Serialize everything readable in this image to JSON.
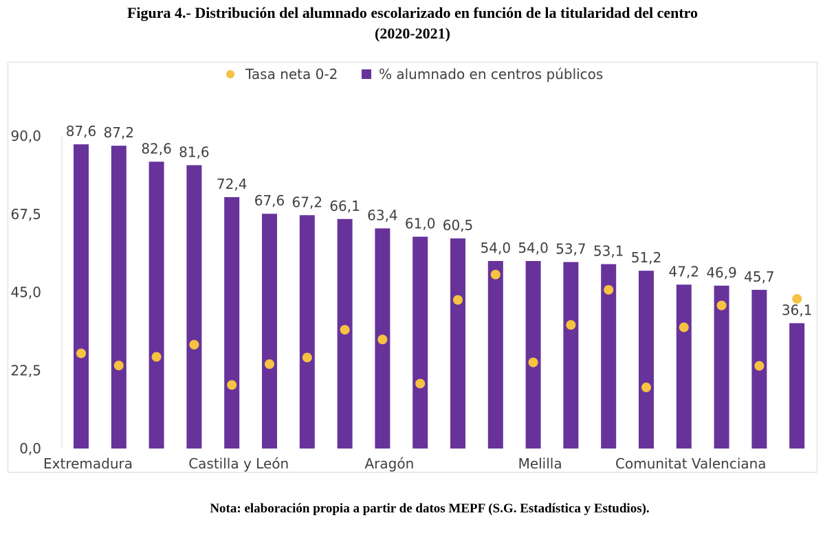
{
  "title": {
    "line1": "Figura 4.- Distribución del alumnado escolarizado en función de la titularidad del centro",
    "line2": "(2020-2021)"
  },
  "note": "Nota: elaboración propia a partir de datos MEPF (S.G. Estadística y Estudios).",
  "colors": {
    "bar": "#67339b",
    "dot": "#f5c242"
  },
  "chart_data": {
    "type": "bar",
    "ylim": [
      0,
      90
    ],
    "yticks": [
      "0,0",
      "22,5",
      "45,0",
      "67,5",
      "90,0"
    ],
    "ytick_values": [
      0,
      22.5,
      45,
      67.5,
      90
    ],
    "grid": false,
    "legend_position": "top",
    "categories": [
      "Extremadura",
      "",
      "",
      "",
      "Castilla y León",
      "",
      "",
      "",
      "Aragón",
      "",
      "",
      "",
      "Melilla",
      "",
      "",
      "",
      "Comunitat Valenciana",
      "",
      "",
      ""
    ],
    "xtick_labels": [
      {
        "index": 0,
        "text": "Extremadura"
      },
      {
        "index": 4,
        "text": "Castilla y León"
      },
      {
        "index": 8,
        "text": "Aragón"
      },
      {
        "index": 12,
        "text": "Melilla"
      },
      {
        "index": 16,
        "text": "Comunitat Valenciana"
      }
    ],
    "series": [
      {
        "name": "% alumnado en centros públicos",
        "kind": "bar",
        "values": [
          87.6,
          87.2,
          82.6,
          81.6,
          72.4,
          67.6,
          67.2,
          66.1,
          63.4,
          61.0,
          60.5,
          54.0,
          54.0,
          53.7,
          53.1,
          51.2,
          47.2,
          46.9,
          45.7,
          36.1
        ],
        "labels": [
          "87,6",
          "87,2",
          "82,6",
          "81,6",
          "72,4",
          "67,6",
          "67,2",
          "66,1",
          "63,4",
          "61,0",
          "60,5",
          "54,0",
          "54,0",
          "53,7",
          "53,1",
          "51,2",
          "47,2",
          "46,9",
          "45,7",
          "36,1"
        ]
      },
      {
        "name": "Tasa neta 0-2",
        "kind": "scatter",
        "values": [
          27.4,
          23.9,
          26.4,
          29.9,
          18.3,
          24.3,
          26.2,
          34.2,
          31.4,
          18.7,
          42.8,
          50.1,
          24.8,
          35.6,
          45.7,
          17.6,
          34.9,
          41.2,
          23.8,
          43.1
        ]
      }
    ]
  }
}
